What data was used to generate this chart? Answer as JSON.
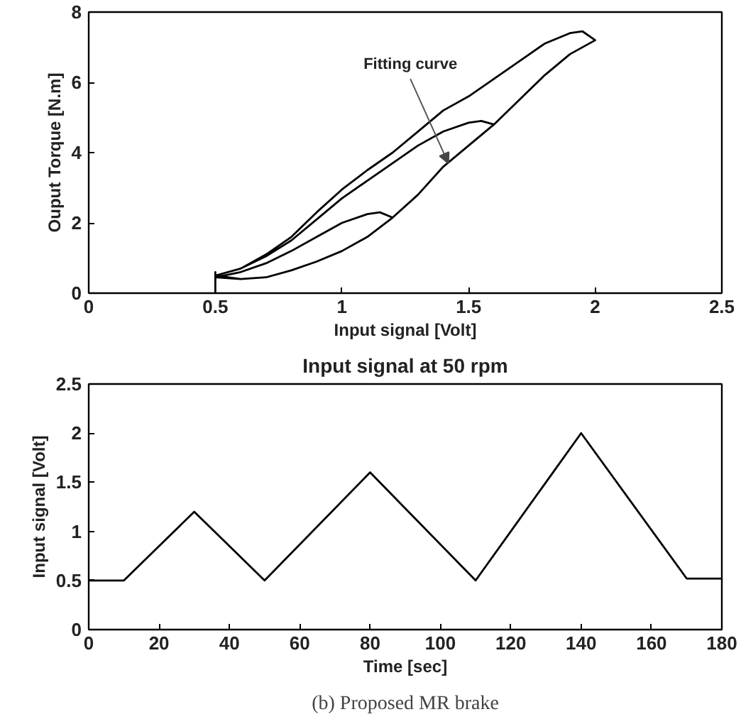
{
  "chart_data": [
    {
      "type": "line",
      "xlabel": "Input signal [Volt]",
      "ylabel": "Ouput Torque [N.m]",
      "xlim": [
        0,
        2.5
      ],
      "ylim": [
        0,
        8
      ],
      "xticks": [
        0,
        0.5,
        1,
        1.5,
        2,
        2.5
      ],
      "yticks": [
        0,
        2,
        4,
        6,
        8
      ],
      "grid": false,
      "marker": "none",
      "line_style": "solid",
      "series": [
        {
          "color": "#000000",
          "x": [
            0.5,
            0.5,
            0.5,
            0.6,
            0.7,
            0.8,
            0.9,
            1.0,
            1.1,
            1.2,
            1.15,
            1.1,
            1.0,
            0.9,
            0.8,
            0.7,
            0.6,
            0.5,
            0.6,
            0.7,
            0.8,
            0.9,
            1.0,
            1.1,
            1.2,
            1.3,
            1.4,
            1.5,
            1.6,
            1.55,
            1.5,
            1.4,
            1.3,
            1.2,
            1.1,
            1.0,
            0.9,
            0.8,
            0.7,
            0.6,
            0.5,
            0.6,
            0.7,
            0.8,
            0.9,
            1.0,
            1.1,
            1.2,
            1.3,
            1.4,
            1.5,
            1.6,
            1.7,
            1.8,
            1.9,
            2.0,
            1.95,
            1.9,
            1.8,
            1.7,
            1.6,
            1.5,
            1.4,
            1.3,
            1.2,
            1.1,
            1.0,
            0.9,
            0.8,
            0.7,
            0.6,
            0.5
          ],
          "values": [
            0,
            0.6,
            0.45,
            0.4,
            0.45,
            0.65,
            0.9,
            1.2,
            1.6,
            2.15,
            2.3,
            2.25,
            2.0,
            1.6,
            1.2,
            0.85,
            0.6,
            0.45,
            0.4,
            0.45,
            0.65,
            0.9,
            1.2,
            1.6,
            2.15,
            2.8,
            3.6,
            4.2,
            4.8,
            4.9,
            4.85,
            4.6,
            4.2,
            3.7,
            3.2,
            2.7,
            2.1,
            1.5,
            1.05,
            0.7,
            0.5,
            0.4,
            0.45,
            0.65,
            0.9,
            1.2,
            1.6,
            2.15,
            2.8,
            3.6,
            4.2,
            4.8,
            5.5,
            6.2,
            6.8,
            7.2,
            7.45,
            7.4,
            7.1,
            6.6,
            6.1,
            5.6,
            5.2,
            4.6,
            4.0,
            3.5,
            2.95,
            2.3,
            1.6,
            1.1,
            0.7,
            0.5
          ]
        }
      ],
      "annotations": [
        {
          "text": "Fitting curve",
          "x": 1.42,
          "y": 3.7
        }
      ]
    },
    {
      "type": "line",
      "title": "Input signal at 50 rpm",
      "xlabel": "Time [sec]",
      "ylabel": "Input signal [Volt]",
      "xlim": [
        0,
        180
      ],
      "ylim": [
        0,
        2.5
      ],
      "xticks": [
        0,
        20,
        40,
        60,
        80,
        100,
        120,
        140,
        160,
        180
      ],
      "yticks": [
        0,
        0.5,
        1,
        1.5,
        2,
        2.5
      ],
      "grid": false,
      "marker": "none",
      "line_style": "solid",
      "series": [
        {
          "color": "#000000",
          "x": [
            0,
            10,
            30,
            50,
            80,
            110,
            140,
            170,
            180
          ],
          "values": [
            0.5,
            0.5,
            1.2,
            0.5,
            1.6,
            0.5,
            2.0,
            0.52,
            0.52
          ]
        }
      ],
      "annotations": [
        "(b) Proposed MR brake"
      ]
    }
  ]
}
